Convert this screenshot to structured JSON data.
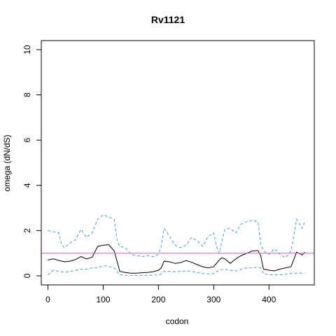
{
  "chart_data": {
    "type": "line",
    "title": "Rv1121",
    "xlabel": "codon",
    "ylabel": "omega (dN/dS)",
    "xlim": [
      -12,
      482
    ],
    "ylim": [
      -0.4,
      10.4
    ],
    "x_ticks": [
      0,
      100,
      200,
      300,
      400
    ],
    "y_ticks": [
      0,
      2,
      4,
      6,
      8,
      10
    ],
    "reference_line": {
      "y": 1,
      "color": "#cc66cc"
    },
    "grid": false,
    "series": [
      {
        "role": "estimate",
        "style": "solid",
        "color": "#000000",
        "x": [
          0,
          10,
          20,
          30,
          40,
          50,
          60,
          70,
          80,
          90,
          100,
          110,
          120,
          130,
          140,
          150,
          160,
          170,
          180,
          190,
          200,
          205,
          210,
          220,
          230,
          240,
          250,
          260,
          270,
          280,
          290,
          300,
          310,
          315,
          320,
          330,
          340,
          350,
          360,
          370,
          380,
          385,
          390,
          400,
          410,
          420,
          430,
          440,
          450,
          460,
          465
        ],
        "y": [
          0.7,
          0.75,
          0.68,
          0.62,
          0.65,
          0.72,
          0.85,
          0.75,
          0.82,
          1.3,
          1.35,
          1.38,
          1.1,
          0.2,
          0.15,
          0.12,
          0.12,
          0.14,
          0.15,
          0.18,
          0.25,
          0.35,
          0.65,
          0.62,
          0.55,
          0.58,
          0.68,
          0.6,
          0.5,
          0.4,
          0.35,
          0.4,
          0.7,
          0.8,
          0.75,
          0.55,
          0.75,
          0.9,
          1.0,
          1.1,
          1.12,
          0.9,
          0.3,
          0.25,
          0.22,
          0.3,
          0.35,
          0.4,
          1.05,
          0.92,
          1.05
        ]
      },
      {
        "role": "upper bound",
        "style": "dashed",
        "color": "#3d9ee0",
        "x": [
          0,
          10,
          20,
          25,
          30,
          40,
          50,
          60,
          70,
          80,
          90,
          100,
          110,
          120,
          125,
          130,
          140,
          150,
          160,
          170,
          180,
          190,
          200,
          205,
          210,
          220,
          230,
          240,
          250,
          260,
          270,
          280,
          290,
          300,
          305,
          310,
          320,
          330,
          340,
          350,
          360,
          370,
          380,
          385,
          390,
          400,
          410,
          420,
          430,
          440,
          450,
          460,
          465
        ],
        "y": [
          2.0,
          1.95,
          1.9,
          1.35,
          1.25,
          1.45,
          1.6,
          2.05,
          1.7,
          1.9,
          2.5,
          2.7,
          2.6,
          2.5,
          1.6,
          1.3,
          1.25,
          0.95,
          0.9,
          0.85,
          0.9,
          0.85,
          0.95,
          1.3,
          2.1,
          1.75,
          1.35,
          1.25,
          1.35,
          1.7,
          1.55,
          1.3,
          1.75,
          1.9,
          1.3,
          1.0,
          2.05,
          2.1,
          1.9,
          2.3,
          2.4,
          2.45,
          2.4,
          1.4,
          1.1,
          0.95,
          1.2,
          0.95,
          0.8,
          1.1,
          2.5,
          2.1,
          2.4
        ]
      },
      {
        "role": "lower bound",
        "style": "dashed",
        "color": "#3d9ee0",
        "x": [
          0,
          10,
          20,
          30,
          40,
          50,
          60,
          70,
          80,
          90,
          100,
          110,
          120,
          130,
          140,
          150,
          160,
          170,
          180,
          190,
          200,
          205,
          210,
          220,
          230,
          240,
          250,
          260,
          270,
          280,
          290,
          300,
          310,
          320,
          330,
          340,
          350,
          360,
          370,
          380,
          385,
          390,
          400,
          410,
          420,
          430,
          440,
          450,
          460,
          465
        ],
        "y": [
          0.05,
          0.25,
          0.2,
          0.15,
          0.2,
          0.25,
          0.3,
          0.3,
          0.35,
          0.35,
          0.45,
          0.42,
          0.35,
          0.05,
          0.03,
          0.02,
          0.02,
          0.02,
          0.02,
          0.03,
          0.05,
          0.08,
          0.2,
          0.2,
          0.18,
          0.2,
          0.22,
          0.2,
          0.15,
          0.1,
          0.08,
          0.1,
          0.25,
          0.3,
          0.25,
          0.22,
          0.3,
          0.35,
          0.35,
          0.38,
          0.35,
          0.1,
          0.05,
          0.05,
          0.05,
          0.07,
          0.1,
          0.12,
          0.12,
          0.12
        ]
      }
    ]
  }
}
